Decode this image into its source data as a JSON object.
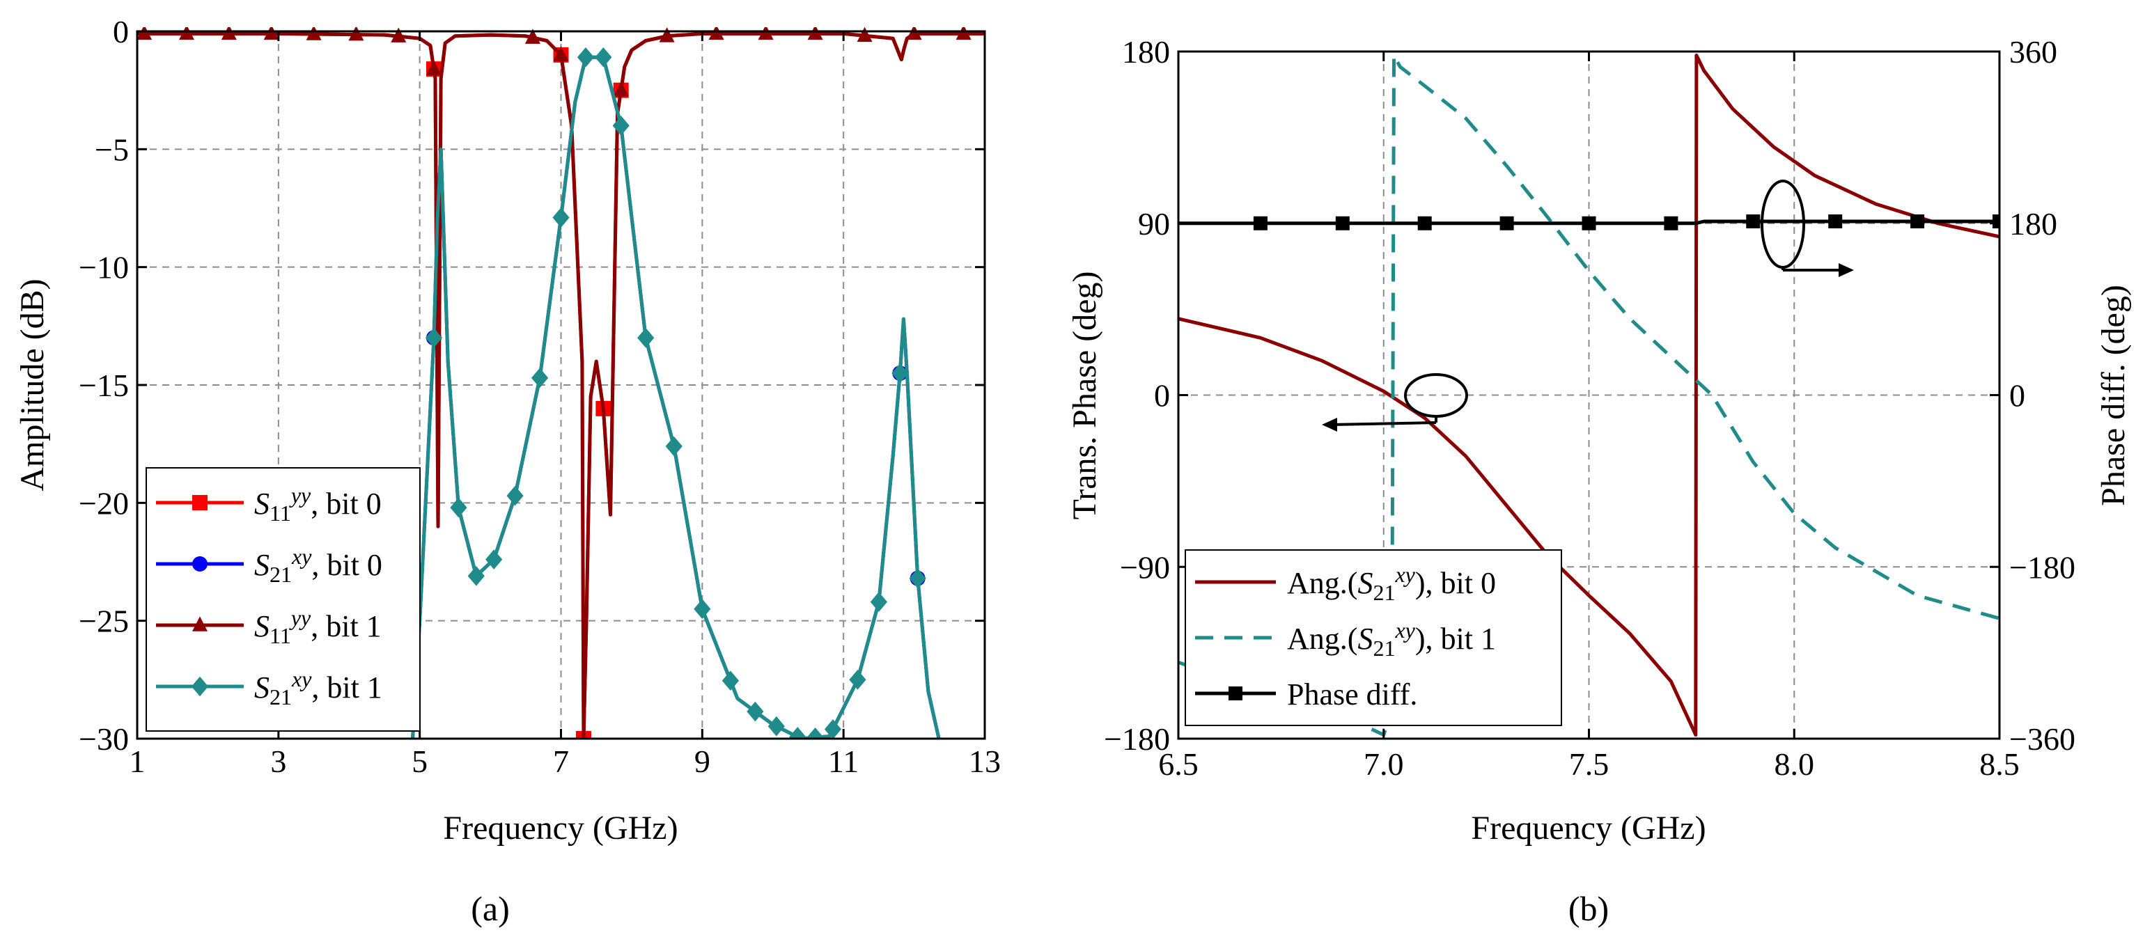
{
  "chart_data": [
    {
      "type": "line",
      "panel": "(a)",
      "xlabel": "Frequency (GHz)",
      "ylabel": "Amplitude (dB)",
      "xlim": [
        1,
        13
      ],
      "ylim": [
        -30,
        0
      ],
      "xticks": [
        1,
        3,
        5,
        7,
        9,
        11,
        13
      ],
      "yticks": [
        0,
        -5,
        -10,
        -15,
        -20,
        -25,
        -30
      ],
      "legend_position": "bottom-left",
      "series": [
        {
          "name": "S11yy, bit 0",
          "label_main": "S",
          "label_sub": "11",
          "label_sup": "yy",
          "label_tail": ", bit 0",
          "color": "#ff0000",
          "marker": "square",
          "x": [
            1,
            3,
            4.5,
            5.0,
            5.15,
            5.22,
            5.26,
            5.3,
            5.36,
            5.5,
            6.0,
            6.5,
            6.8,
            7.0,
            7.15,
            7.3,
            7.32,
            7.36,
            7.42,
            7.5,
            7.6,
            7.7,
            7.8,
            7.9,
            8.0,
            8.2,
            8.5,
            9,
            10,
            11,
            11.7,
            11.82,
            11.86,
            11.9,
            12,
            13
          ],
          "y": [
            -0.1,
            -0.1,
            -0.15,
            -0.3,
            -0.6,
            -2,
            -21,
            -2,
            -0.5,
            -0.2,
            -0.15,
            -0.2,
            -0.4,
            -1,
            -4,
            -14,
            -30,
            -25,
            -15.5,
            -14,
            -16,
            -20.5,
            -3.5,
            -1.5,
            -0.8,
            -0.4,
            -0.2,
            -0.1,
            -0.1,
            -0.1,
            -0.3,
            -1.2,
            -0.7,
            -0.3,
            -0.1,
            -0.1
          ],
          "marker_x": [
            5.2,
            7.0,
            7.32,
            7.6,
            7.85
          ]
        },
        {
          "name": "S21xy, bit 0",
          "label_main": "S",
          "label_sub": "21",
          "label_sup": "xy",
          "label_tail": ", bit 0",
          "color": "#0000ff",
          "marker": "circle",
          "x": [
            4.9,
            5.0,
            5.1,
            5.2,
            5.25,
            5.3,
            5.4,
            5.55,
            5.8,
            6.05,
            6.35,
            6.7,
            7.0,
            7.2,
            7.35,
            7.6,
            7.85,
            8.2,
            8.6,
            9.0,
            9.5,
            10.0,
            10.4,
            10.8,
            11.2,
            11.5,
            11.7,
            11.8,
            11.85,
            11.9,
            12.05,
            12.2,
            12.35
          ],
          "y": [
            -30,
            -25,
            -19,
            -13,
            -8,
            -5,
            -14,
            -20.2,
            -23.1,
            -22.4,
            -19.7,
            -14.7,
            -7.9,
            -3,
            -1.1,
            -1.1,
            -4,
            -13,
            -17.6,
            -24.5,
            -28.3,
            -29.4,
            -30,
            -29.9,
            -27.5,
            -24.2,
            -18,
            -14.5,
            -12.2,
            -14.5,
            -23.2,
            -28,
            -30
          ],
          "marker_x": [
            5.2,
            11.8,
            12.05
          ]
        },
        {
          "name": "S11yy, bit 1",
          "label_main": "S",
          "label_sub": "11",
          "label_sup": "yy",
          "label_tail": ", bit 1",
          "color": "#8b0000",
          "marker": "triangle",
          "x": [
            1,
            3,
            4.5,
            5.0,
            5.15,
            5.22,
            5.26,
            5.3,
            5.36,
            5.5,
            6.0,
            6.5,
            6.8,
            7.0,
            7.15,
            7.3,
            7.32,
            7.36,
            7.42,
            7.5,
            7.6,
            7.7,
            7.8,
            7.9,
            8.0,
            8.2,
            8.5,
            9,
            10,
            11,
            11.7,
            11.82,
            11.86,
            11.9,
            12,
            13
          ],
          "y": [
            -0.1,
            -0.1,
            -0.15,
            -0.3,
            -0.6,
            -2,
            -21,
            -2,
            -0.5,
            -0.2,
            -0.15,
            -0.2,
            -0.4,
            -1,
            -4,
            -14,
            -30,
            -25,
            -15.5,
            -14,
            -16,
            -20.5,
            -3.5,
            -1.5,
            -0.8,
            -0.4,
            -0.2,
            -0.1,
            -0.1,
            -0.1,
            -0.3,
            -1.2,
            -0.7,
            -0.3,
            -0.1,
            -0.1
          ],
          "marker_x": [
            1.1,
            1.7,
            2.3,
            2.9,
            3.5,
            4.1,
            4.7,
            5.2,
            6.6,
            7.0,
            7.85,
            8.5,
            9.2,
            9.9,
            10.6,
            11.3,
            12.0,
            12.7
          ]
        },
        {
          "name": "S21xy, bit 1",
          "label_main": "S",
          "label_sub": "21",
          "label_sup": "xy",
          "label_tail": ", bit 1",
          "color": "#1f8b8b",
          "marker": "diamond",
          "x": [
            4.9,
            5.0,
            5.1,
            5.2,
            5.25,
            5.3,
            5.4,
            5.55,
            5.8,
            6.05,
            6.35,
            6.7,
            7.0,
            7.2,
            7.35,
            7.6,
            7.85,
            8.2,
            8.6,
            9.0,
            9.5,
            10.0,
            10.4,
            10.8,
            11.2,
            11.5,
            11.7,
            11.8,
            11.85,
            11.9,
            12.05,
            12.2,
            12.35
          ],
          "y": [
            -30,
            -25,
            -19,
            -13,
            -8,
            -5,
            -14,
            -20.2,
            -23.1,
            -22.4,
            -19.7,
            -14.7,
            -7.9,
            -3,
            -1.1,
            -1.1,
            -4,
            -13,
            -17.6,
            -24.5,
            -28.3,
            -29.4,
            -30,
            -29.9,
            -27.5,
            -24.2,
            -18,
            -14.5,
            -12.2,
            -14.5,
            -23.2,
            -28,
            -30
          ],
          "marker_x": [
            5.2,
            5.55,
            5.8,
            6.05,
            6.35,
            6.7,
            7.0,
            7.35,
            7.6,
            7.85,
            8.2,
            8.6,
            9.0,
            9.4,
            9.75,
            10.05,
            10.35,
            10.6,
            10.85,
            11.2,
            11.5,
            11.8,
            12.05
          ]
        }
      ]
    },
    {
      "type": "line",
      "panel": "(b)",
      "xlabel": "Frequency (GHz)",
      "ylabel": "Trans. Phase (deg)",
      "y2label": "Phase diff. (deg)",
      "xlim": [
        6.5,
        8.5
      ],
      "ylim": [
        -180,
        180
      ],
      "y2lim": [
        -360,
        360
      ],
      "xticks": [
        "6.5",
        "7.0",
        "7.5",
        "8.0",
        "8.5"
      ],
      "yticks": [
        "180",
        "90",
        "0",
        "-90",
        "-180"
      ],
      "y2ticks": [
        "360",
        "180",
        "0",
        "-180",
        "-360"
      ],
      "legend_position": "bottom-left",
      "series": [
        {
          "name": "Ang.(S21xy), bit 0",
          "label_main": "Ang.(",
          "label_s": "S",
          "label_sub": "21",
          "label_sup": "xy",
          "label_tail": "), bit 0",
          "color": "#8b0000",
          "style": "solid",
          "axis": "left",
          "x": [
            6.5,
            6.7,
            6.85,
            7.0,
            7.1,
            7.2,
            7.3,
            7.4,
            7.5,
            7.6,
            7.7,
            7.76,
            7.762,
            7.78,
            7.85,
            7.95,
            8.05,
            8.2,
            8.35,
            8.5
          ],
          "y": [
            40,
            30,
            18,
            2,
            -12,
            -32,
            -58,
            -84,
            -105,
            -125,
            -150,
            -178,
            178,
            170,
            150,
            130,
            115,
            100,
            90,
            83
          ]
        },
        {
          "name": "Ang.(S21xy), bit 1",
          "label_main": "Ang.(",
          "label_s": "S",
          "label_sub": "21",
          "label_sup": "xy",
          "label_tail": "), bit 1",
          "color": "#1f8b8b",
          "style": "dashed",
          "axis": "left",
          "x": [
            6.5,
            6.7,
            6.9,
            7.0,
            7.02,
            7.025,
            7.04,
            7.1,
            7.2,
            7.3,
            7.4,
            7.5,
            7.6,
            7.7,
            7.8,
            7.9,
            8.0,
            8.1,
            8.3,
            8.5
          ],
          "y": [
            -140,
            -155,
            -168,
            -178,
            -165,
            178,
            172,
            162,
            145,
            120,
            93,
            65,
            40,
            20,
            0,
            -35,
            -62,
            -80,
            -105,
            -117
          ]
        },
        {
          "name": "Phase diff.",
          "label_main": "Phase diff.",
          "color": "#000000",
          "style": "solid",
          "marker": "square",
          "axis": "right",
          "x": [
            6.5,
            7.76,
            7.78,
            8.5
          ],
          "y": [
            180,
            180,
            182,
            182
          ],
          "marker_x": [
            6.7,
            6.9,
            7.1,
            7.3,
            7.5,
            7.7,
            7.9,
            8.1,
            8.3,
            8.5
          ]
        }
      ]
    }
  ],
  "captions": {
    "a": "(a)",
    "b": "(b)"
  }
}
